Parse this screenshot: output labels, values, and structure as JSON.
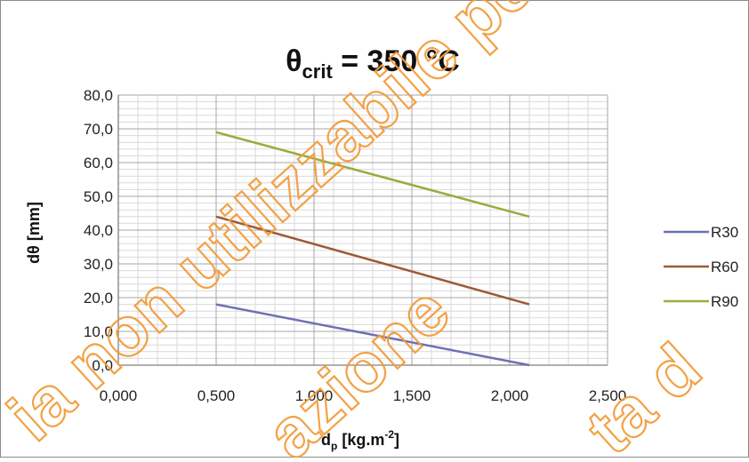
{
  "chart_data": {
    "type": "line",
    "title": {
      "symbol": "θ",
      "subscript": "crit",
      "rest": " = 350 °C"
    },
    "xlabel": {
      "main": "d",
      "sub": "p",
      "unit_open": " [kg.m",
      "sup": "-2",
      "unit_close": "]"
    },
    "ylabel": "dθ [mm]",
    "xlim": [
      0,
      2.5
    ],
    "ylim": [
      0,
      80
    ],
    "x_ticks": [
      "0,000",
      "0,500",
      "1,000",
      "1,500",
      "2,000",
      "2,500"
    ],
    "y_ticks": [
      "0,0",
      "10,0",
      "20,0",
      "30,0",
      "40,0",
      "50,0",
      "60,0",
      "70,0",
      "80,0"
    ],
    "grid": true,
    "legend_position": "right",
    "series": [
      {
        "name": "R30",
        "color": "#6f6fb6",
        "x": [
          0.5,
          2.1
        ],
        "y": [
          18.0,
          0.0
        ]
      },
      {
        "name": "R60",
        "color": "#9c5a35",
        "x": [
          0.5,
          2.1
        ],
        "y": [
          44.0,
          18.0
        ]
      },
      {
        "name": "R90",
        "color": "#9aab3c",
        "x": [
          0.5,
          2.1
        ],
        "y": [
          69.0,
          44.0
        ]
      }
    ]
  },
  "watermark": {
    "line1": "ia non utilizzabile perché",
    "line2": "azione",
    "line3": "ta d",
    "color": "#f39c3c"
  }
}
